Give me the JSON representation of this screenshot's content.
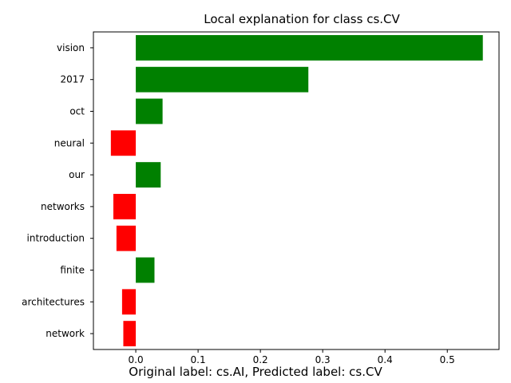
{
  "chart_data": {
    "type": "bar",
    "orientation": "horizontal",
    "title": "Local explanation for class cs.CV",
    "categories": [
      "vision",
      "2017",
      "oct",
      "neural",
      "our",
      "networks",
      "introduction",
      "finite",
      "architectures",
      "network"
    ],
    "values": [
      0.557,
      0.277,
      0.043,
      -0.04,
      0.04,
      -0.036,
      -0.031,
      0.03,
      -0.022,
      -0.02
    ],
    "xlim": [
      -0.068,
      0.583
    ],
    "xticks": [
      0.0,
      0.1,
      0.2,
      0.3,
      0.4,
      0.5
    ],
    "xtick_labels": [
      "0.0",
      "0.1",
      "0.2",
      "0.3",
      "0.4",
      "0.5"
    ],
    "positive_color": "#008000",
    "negative_color": "#ff0000",
    "grid": false,
    "caption": "Original label: cs.AI, Predicted label: cs.CV"
  }
}
